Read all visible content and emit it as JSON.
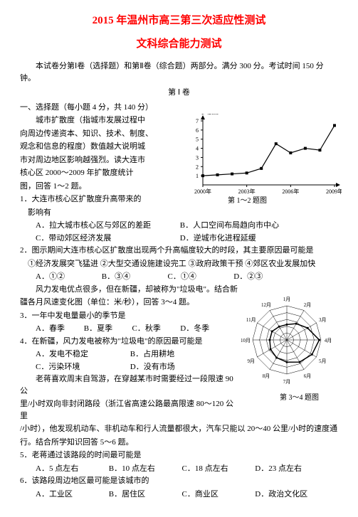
{
  "title_line1": "2015 年温州市高三第三次适应性测试",
  "title_line2": "文科综合能力测试",
  "intro": "本试卷分第Ⅰ卷（选择题）和第Ⅱ卷（综合题）两部分。满分 300 分。考试时间 150 分钟。",
  "part_label": "第 Ⅰ 卷",
  "section1": "一、选择题（每小题 4 分，共 140 分）",
  "passage1_l1": "城市扩散度（指城市发展过程中",
  "passage1_l2": "向周边传递资本、知识、技术、制度、",
  "passage1_l3": "观念和信息的程度）数值越大说明城",
  "passage1_l4": "市对周边地区影响越强烈。读大连市",
  "passage1_l5": "核心区 2000～2009 年扩散度统计",
  "passage1_l6": "图，回答 1～2 题。",
  "q1_stem": "1．大连市核心区扩散度升高带来的",
  "q1_stem2": "影响有",
  "q1_A": "A．拉大城市核心区与郊区的差距",
  "q1_B": "B．人口空间布局趋向市中心",
  "q1_C": "C．带动郊区经济发展",
  "q1_D": "D．逆城市化进程延缓",
  "q2_stem": "2．图示期间大连市核心区扩散度出现两个升高幅度较大的时段，其主要原因最可能是",
  "q2_line2": "①经济发展突飞猛进 ②大型交通设施建设完工 ③政府政策干预 ④郊区农业发展加快",
  "q2_A": "A．①②",
  "q2_B": "B．③④",
  "q2_C": "C．①④",
  "q2_D": "D．②③",
  "passage2_l1": "风力发电优点很多，但在新疆，却被称为\"垃圾电\"。结合新",
  "passage2_l2": "疆各月风速变化图（单位：米/秒），回答 3～4 题。",
  "q3_stem": "3．一年中发电量最小的季节是",
  "q3_A": "A．春季",
  "q3_B": "B．夏季",
  "q3_C": "C．秋季",
  "q3_D": "D．冬季",
  "q4_stem": "4．在新疆，风力发电被称为\"垃圾电\"的原因最可能是",
  "q4_A": "A．发电不稳定",
  "q4_B": "B．占用耕地",
  "q4_C": "C．污染环境",
  "q4_D": "D．没有市场",
  "passage3_l1": "老蒋喜欢周末自驾游，在穿越某市时需要经过一段限速 90 公",
  "passage3_l2": "里/小时双向非封闭路段（浙江省高速公路最高限速 80～120 公里",
  "passage3_l3": "/小时），他发现机动车、非机动车和行人流量都很大，汽车只能以 20～40 公里/小时的速度通",
  "passage3_l4": "行。结合所学知识回答 5～6 题。",
  "q5_stem": "5．老蒋通过该路段的时间最可能是",
  "q5_A": "A．5 点左右",
  "q5_B": "B．10 点左右",
  "q5_C": "C．18 点左右",
  "q5_D": "D．23 点左右",
  "q6_stem": "6．该路段周边地区最可能是该城市的",
  "q6_A": "A．工业区",
  "q6_B": "B．居住区",
  "q6_C": "C．商业区",
  "q6_D": "D．政治文化区",
  "chart_caption": "第 1～2 题图",
  "radar_caption": "第 3～4 题图",
  "line_chart": {
    "ylabel": "扩散度",
    "ymax": 7,
    "yticks": [
      1,
      2,
      3,
      4,
      5,
      6,
      7
    ],
    "x_labels": [
      "2000年",
      "2003年",
      "2006年",
      "2009年"
    ],
    "color_line": "#000000",
    "color_axis": "#000000",
    "values": [
      1.0,
      1.1,
      1.2,
      1.3,
      1.8,
      4.5,
      3.5,
      4.0,
      3.8,
      6.5
    ]
  },
  "radar": {
    "months": [
      "1月",
      "2月",
      "3月",
      "4月",
      "5月",
      "6月",
      "7月",
      "8月",
      "9月",
      "10月",
      "11月",
      "12月"
    ],
    "rings": 5,
    "color": "#000000",
    "values": [
      0.45,
      0.55,
      0.7,
      0.95,
      0.85,
      0.75,
      0.65,
      0.6,
      0.55,
      0.5,
      0.5,
      0.45
    ]
  }
}
